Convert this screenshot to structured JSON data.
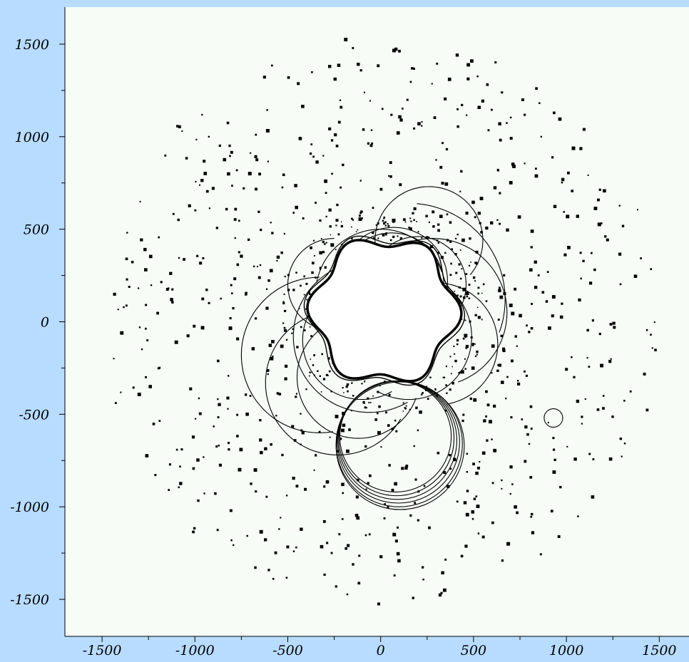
{
  "colors": {
    "page_background": "#b8dcff",
    "plot_background": "#f7fcf7",
    "ink": "#000000"
  },
  "chart_data": {
    "type": "scatter",
    "title": "",
    "xlabel": "",
    "ylabel": "",
    "xlim": [
      -1700,
      1660
    ],
    "ylim": [
      -1700,
      1700
    ],
    "grid": false,
    "legend": "none",
    "x_ticks": [
      {
        "value": -1500,
        "label": "-1500"
      },
      {
        "value": -1000,
        "label": "-1000"
      },
      {
        "value": -500,
        "label": "-500"
      },
      {
        "value": 0,
        "label": "0"
      },
      {
        "value": 500,
        "label": "500"
      },
      {
        "value": 1000,
        "label": "1000"
      },
      {
        "value": 1500,
        "label": "1500"
      }
    ],
    "y_ticks": [
      {
        "value": 1500,
        "label": "1500"
      },
      {
        "value": 1000,
        "label": "1000"
      },
      {
        "value": 500,
        "label": "500"
      },
      {
        "value": 0,
        "label": "0"
      },
      {
        "value": -500,
        "label": "-500"
      },
      {
        "value": -1000,
        "label": "-1000"
      },
      {
        "value": -1500,
        "label": "-1500"
      }
    ],
    "x_minor_step": 250,
    "y_minor_step": 250,
    "scatter_points": {
      "seed": 7,
      "count": 700,
      "inner_radius": 460,
      "outer_radius": 1510,
      "marker_size_range": [
        2,
        5
      ]
    },
    "central_blob": {
      "center": [
        20,
        60
      ],
      "radius": 380,
      "lobe_amplitude": 35,
      "lobes": 6
    },
    "arcs": [
      {
        "cx": 80,
        "cy": -620,
        "r": 300,
        "start_deg": 0,
        "end_deg": 360
      },
      {
        "cx": 85,
        "cy": -630,
        "r": 310,
        "start_deg": 0,
        "end_deg": 360
      },
      {
        "cx": 90,
        "cy": -640,
        "r": 320,
        "start_deg": 0,
        "end_deg": 360
      },
      {
        "cx": 95,
        "cy": -650,
        "r": 330,
        "start_deg": 0,
        "end_deg": 360
      },
      {
        "cx": 100,
        "cy": -660,
        "r": 340,
        "start_deg": 0,
        "end_deg": 360
      },
      {
        "cx": 105,
        "cy": -670,
        "r": 345,
        "start_deg": 0,
        "end_deg": 360
      },
      {
        "cx": 260,
        "cy": 440,
        "r": 290,
        "start_deg": -40,
        "end_deg": 200
      },
      {
        "cx": 150,
        "cy": 120,
        "r": 520,
        "start_deg": -20,
        "end_deg": 85
      },
      {
        "cx": 280,
        "cy": 50,
        "r": 400,
        "start_deg": -70,
        "end_deg": 120
      },
      {
        "cx": 300,
        "cy": -120,
        "r": 330,
        "start_deg": -80,
        "end_deg": 90
      },
      {
        "cx": -330,
        "cy": -180,
        "r": 420,
        "start_deg": 90,
        "end_deg": 280
      },
      {
        "cx": -230,
        "cy": -330,
        "r": 390,
        "start_deg": 100,
        "end_deg": 330
      },
      {
        "cx": -120,
        "cy": -300,
        "r": 330,
        "start_deg": 120,
        "end_deg": 340
      },
      {
        "cx": -100,
        "cy": -100,
        "r": 320,
        "start_deg": 130,
        "end_deg": 300
      },
      {
        "cx": -250,
        "cy": 200,
        "r": 250,
        "start_deg": 90,
        "end_deg": 270
      },
      {
        "cx": 0,
        "cy": 150,
        "r": 350,
        "start_deg": 20,
        "end_deg": 170
      },
      {
        "cx": 60,
        "cy": 200,
        "r": 280,
        "start_deg": 0,
        "end_deg": 360
      },
      {
        "cx": 70,
        "cy": 220,
        "r": 290,
        "start_deg": 0,
        "end_deg": 360
      },
      {
        "cx": -60,
        "cy": -80,
        "r": 410,
        "start_deg": 110,
        "end_deg": 300
      },
      {
        "cx": 150,
        "cy": -80,
        "r": 340,
        "start_deg": -120,
        "end_deg": 60
      },
      {
        "cx": 200,
        "cy": 200,
        "r": 260,
        "start_deg": -30,
        "end_deg": 150
      },
      {
        "cx": 930,
        "cy": -520,
        "r": 50,
        "start_deg": 0,
        "end_deg": 360
      }
    ]
  }
}
